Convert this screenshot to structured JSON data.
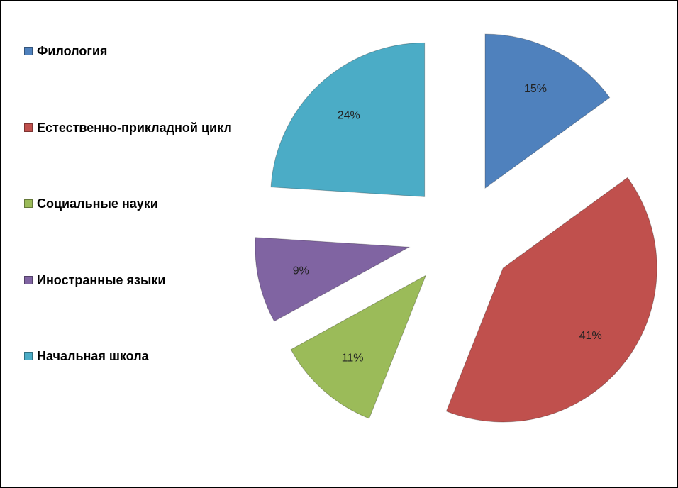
{
  "chart_data": {
    "type": "pie",
    "categories": [
      "Филология",
      "Естественно-прикладной цикл",
      "Социальные науки",
      "Иностранные языки",
      "Начальная школа"
    ],
    "values": [
      15,
      41,
      11,
      9,
      24
    ],
    "value_labels": [
      "15%",
      "41%",
      "11%",
      "9%",
      "24%"
    ],
    "colors": [
      "#4f81bd",
      "#c0504d",
      "#9bbb59",
      "#8064a2",
      "#4bacc6"
    ],
    "legend": "left"
  }
}
